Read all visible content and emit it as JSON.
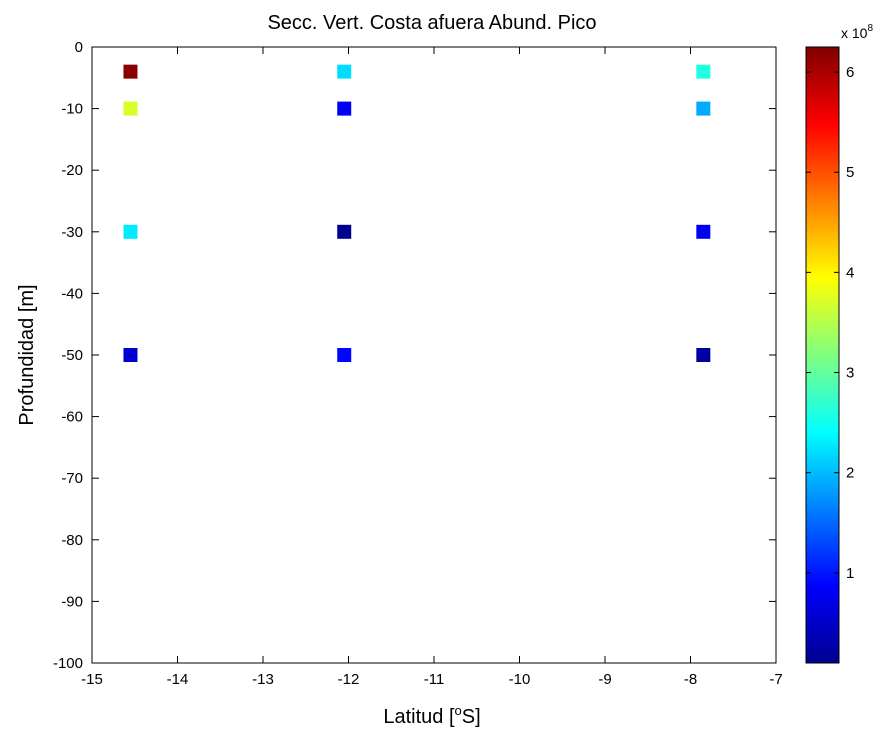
{
  "chart_data": {
    "type": "scatter",
    "title": "Secc. Vert. Costa afuera Abund. Pico",
    "xlabel_main": "Latitud [",
    "xlabel_sup": "o",
    "xlabel_end": "S]",
    "ylabel": "Profundidad [m]",
    "xlim": [
      -15,
      -7
    ],
    "ylim": [
      -100,
      0
    ],
    "xticks": [
      -15,
      -14,
      -13,
      -12,
      -11,
      -10,
      -9,
      -8,
      -7
    ],
    "yticks": [
      0,
      -10,
      -20,
      -30,
      -40,
      -50,
      -60,
      -70,
      -80,
      -90,
      -100
    ],
    "grid": false,
    "marker": "square",
    "colormap": "jet",
    "colorbar": {
      "multiplier_base": "x 10",
      "multiplier_exp": "8",
      "clim": [
        0.1,
        6.25
      ],
      "ticks": [
        1,
        2,
        3,
        4,
        5,
        6
      ]
    },
    "points": [
      {
        "x": -14.55,
        "y": -4,
        "value": 6.2
      },
      {
        "x": -14.55,
        "y": -10,
        "value": 3.7
      },
      {
        "x": -14.55,
        "y": -30,
        "value": 2.3
      },
      {
        "x": -14.55,
        "y": -50,
        "value": 0.6
      },
      {
        "x": -12.05,
        "y": -4,
        "value": 2.2
      },
      {
        "x": -12.05,
        "y": -10,
        "value": 0.8
      },
      {
        "x": -12.05,
        "y": -30,
        "value": 0.2
      },
      {
        "x": -12.05,
        "y": -50,
        "value": 0.9
      },
      {
        "x": -7.85,
        "y": -4,
        "value": 2.6
      },
      {
        "x": -7.85,
        "y": -10,
        "value": 1.9
      },
      {
        "x": -7.85,
        "y": -30,
        "value": 0.8
      },
      {
        "x": -7.85,
        "y": -50,
        "value": 0.3
      }
    ]
  }
}
